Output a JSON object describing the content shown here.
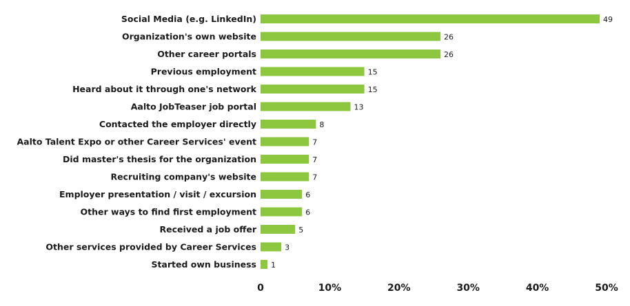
{
  "chart_data": {
    "type": "bar",
    "orientation": "horizontal",
    "categories": [
      "Social Media (e.g. LinkedIn)",
      "Organization's own website",
      "Other career portals",
      "Previous employment",
      "Heard about it  through one's network",
      "Aalto JobTeaser job portal",
      "Contacted the employer directly",
      "Aalto Talent Expo or other Career Services' event",
      "Did master's thesis for the organization",
      "Recruiting company's website",
      "Employer presentation / visit / excursion",
      "Other ways to find first employment",
      "Received a job offer",
      "Other services provided by Career Services",
      "Started own business"
    ],
    "values": [
      49,
      26,
      26,
      15,
      15,
      13,
      8,
      7,
      7,
      7,
      6,
      6,
      5,
      3,
      1
    ],
    "xlim": [
      0,
      50
    ],
    "xticks": [
      "0",
      "10%",
      "20%",
      "30%",
      "40%",
      "50%"
    ],
    "title": "",
    "xlabel": "",
    "ylabel": "",
    "grid": false,
    "legend": "none",
    "bar_color": "#8dc63f"
  }
}
